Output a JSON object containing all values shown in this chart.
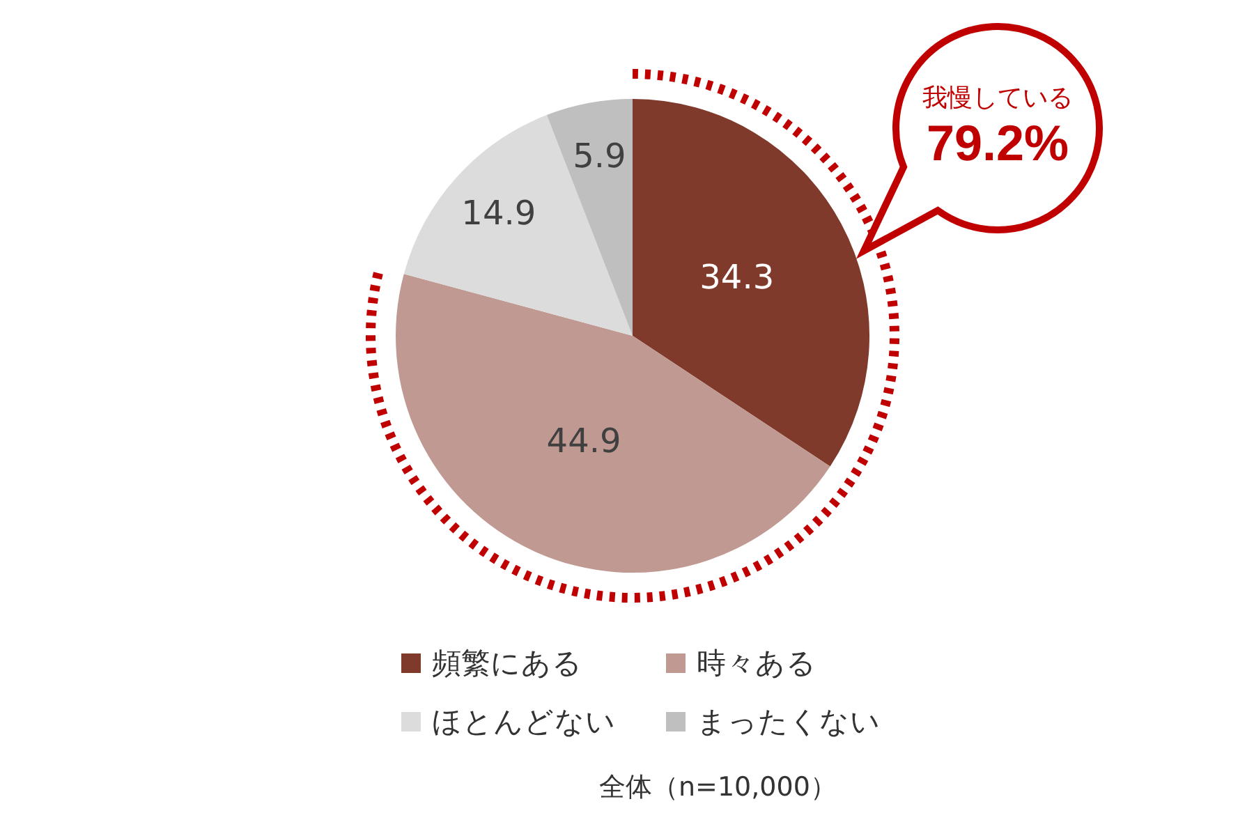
{
  "chart_data": {
    "type": "pie",
    "categories": [
      "頻繁にある",
      "時々ある",
      "ほとんどない",
      "まったくない"
    ],
    "values": [
      34.3,
      44.9,
      14.9,
      5.9
    ],
    "colors": [
      "#7f3a2c",
      "#c09a92",
      "#dcdcdc",
      "#bfbfbf"
    ],
    "data_labels": true,
    "legend": "bottom",
    "annotations": [
      "我慢している",
      "79.2%",
      "全体（n=10,000）"
    ]
  }
}
